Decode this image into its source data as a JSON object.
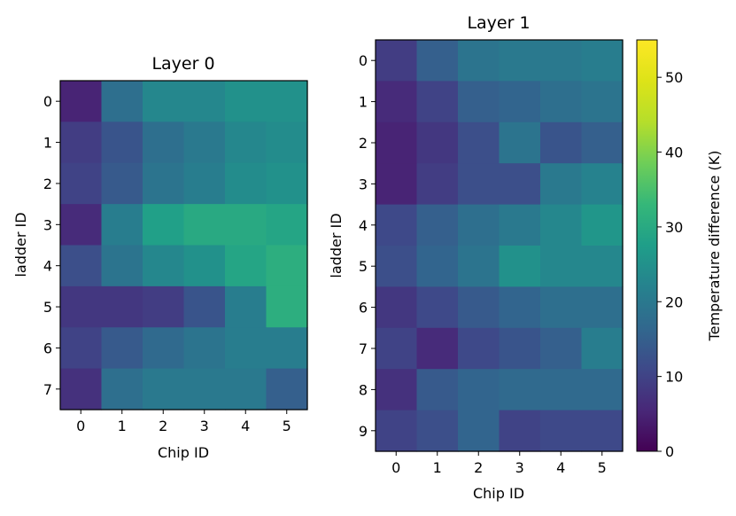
{
  "chart_data": [
    {
      "type": "heatmap",
      "title": "Layer 0",
      "xlabel": "Chip ID",
      "ylabel": "ladder ID",
      "x_ticks": [
        "0",
        "1",
        "2",
        "3",
        "4",
        "5"
      ],
      "y_ticks": [
        "0",
        "1",
        "2",
        "3",
        "4",
        "5",
        "6",
        "7"
      ],
      "values": [
        [
          5,
          18,
          23,
          23,
          25,
          25
        ],
        [
          9,
          13,
          18,
          20,
          23,
          24
        ],
        [
          10,
          14,
          19,
          21,
          24,
          25
        ],
        [
          6,
          21,
          28,
          30,
          30,
          29
        ],
        [
          12,
          19,
          23,
          25,
          29,
          31
        ],
        [
          8,
          8,
          9,
          13,
          21,
          31
        ],
        [
          10,
          14,
          17,
          19,
          21,
          21
        ],
        [
          7,
          18,
          20,
          20,
          20,
          15
        ]
      ]
    },
    {
      "type": "heatmap",
      "title": "Layer 1",
      "xlabel": "Chip ID",
      "ylabel": "ladder ID",
      "x_ticks": [
        "0",
        "1",
        "2",
        "3",
        "4",
        "5"
      ],
      "y_ticks": [
        "0",
        "1",
        "2",
        "3",
        "4",
        "5",
        "6",
        "7",
        "8",
        "9"
      ],
      "values": [
        [
          9,
          15,
          19,
          20,
          20,
          21
        ],
        [
          6,
          10,
          15,
          16,
          18,
          19
        ],
        [
          5,
          8,
          12,
          19,
          13,
          15
        ],
        [
          5,
          9,
          12,
          12,
          20,
          22
        ],
        [
          11,
          15,
          18,
          20,
          23,
          26
        ],
        [
          12,
          16,
          19,
          25,
          23,
          23
        ],
        [
          8,
          11,
          14,
          16,
          18,
          18
        ],
        [
          10,
          6,
          11,
          13,
          15,
          21
        ],
        [
          7,
          14,
          16,
          17,
          17,
          17
        ],
        [
          10,
          12,
          16,
          10,
          11,
          11
        ]
      ]
    }
  ],
  "colorbar": {
    "label": "Temperature difference (K)",
    "min": 0,
    "max": 55,
    "colormap": "viridis",
    "ticks": [
      "0",
      "10",
      "20",
      "30",
      "40",
      "50"
    ]
  }
}
